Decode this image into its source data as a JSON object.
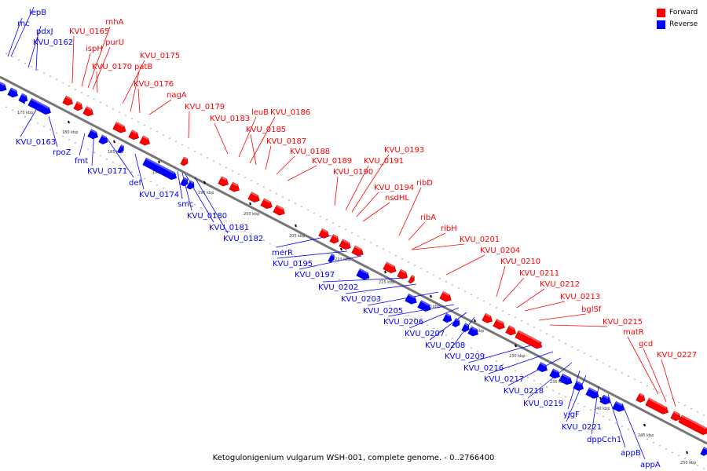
{
  "caption": "Ketogulonigenium vulgarum WSH-001, complete genome. - 0..2766400",
  "legend": [
    {
      "label": "Forward",
      "color": "#ff0000"
    },
    {
      "label": "Reverse",
      "color": "#0000ff"
    }
  ],
  "colors": {
    "forward": "#ff0000",
    "reverse": "#0000ff",
    "forward_dark": "#aa0000",
    "reverse_dark": "#0000aa",
    "backbone": "#777777"
  },
  "ticks": [
    "175 kbp",
    "180 kbp",
    "185 kbp",
    "190 kbp",
    "195 kbp",
    "200 kbp",
    "205 kbp",
    "210 kbp",
    "215 kbp",
    "220 kbp",
    "225 kbp",
    "230 kbp",
    "235 kbp",
    "240 kbp",
    "245 kbp",
    "250 kbp"
  ],
  "forward_labels": [
    "rnhA",
    "KVU_0165",
    "purU",
    "ispH",
    "KVU_0170",
    "KVU_0175",
    "patB",
    "KVU_0176",
    "nagA",
    "KVU_0179",
    "leuB",
    "KVU_0186",
    "KVU_0183",
    "KVU_0185",
    "KVU_0187",
    "KVU_0188",
    "KVU_0189",
    "KVU_0193",
    "KVU_0191",
    "KVU_0190",
    "ribD",
    "KVU_0194",
    "nsdHL",
    "ribA",
    "ribH",
    "KVU_0201",
    "KVU_0204",
    "KVU_0210",
    "KVU_0211",
    "KVU_0212",
    "KVU_0213",
    "bglSf",
    "KVU_0215",
    "matR",
    "gcd",
    "KVU_0227"
  ],
  "reverse_labels": [
    "lepB",
    "rnc",
    "pdxJ",
    "KVU_0162",
    "KVU_0163",
    "rpoZ",
    "fmt",
    "KVU_0171",
    "def",
    "KVU_0174",
    "smc",
    "KVU_0180",
    "KVU_0181",
    "KVU_0182",
    "merR",
    "KVU_0195",
    "KVU_0197",
    "KVU_0202",
    "KVU_0203",
    "KVU_0205",
    "KVU_0206",
    "KVU_0207",
    "KVU_0208",
    "KVU_0209",
    "KVU_0216",
    "KVU_0217",
    "KVU_0218",
    "KVU_0219",
    "yjgF",
    "KVU_0221",
    "dppCch1",
    "appB",
    "appA"
  ]
}
